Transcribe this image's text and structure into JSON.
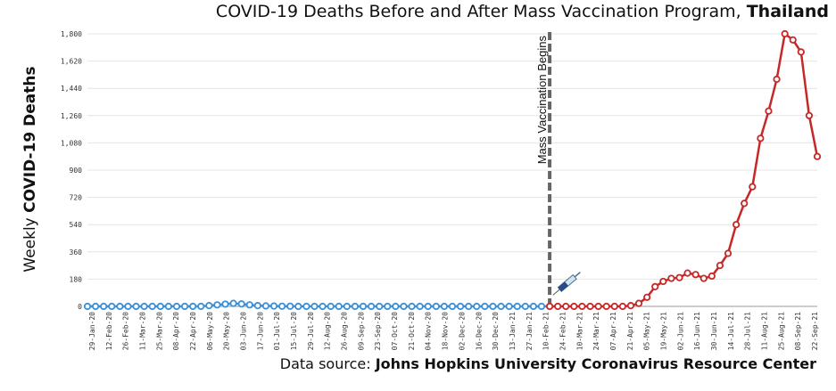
{
  "title": {
    "prefix": "COVID-19 Deaths Before and After Mass Vaccination Program, ",
    "country": "Thailand"
  },
  "ylabel": {
    "prefix": "Weekly ",
    "bold": "COVID-19 Deaths"
  },
  "source": {
    "prefix": "Data source: ",
    "bold": "Johns Hopkins University Coronavirus Resource Center"
  },
  "annotation": "Mass Vaccination Begins",
  "icons": {
    "vaccine": "syringe-icon"
  },
  "colors": {
    "before": "#3a8fd6",
    "after": "#c62828",
    "marker_line": "#666666"
  },
  "chart_data": {
    "type": "line",
    "ylim": [
      0,
      1800
    ],
    "yticks": [
      "0",
      "180",
      "360",
      "540",
      "720",
      "900",
      "1,080",
      "1,260",
      "1,440",
      "1,620",
      "1,800"
    ],
    "xtick_labels": [
      "29-Jan-20",
      "12-Feb-20",
      "26-Feb-20",
      "11-Mar-20",
      "25-Mar-20",
      "08-Apr-20",
      "22-Apr-20",
      "06-May-20",
      "20-May-20",
      "03-Jun-20",
      "17-Jun-20",
      "01-Jul-20",
      "15-Jul-20",
      "29-Jul-20",
      "12-Aug-20",
      "26-Aug-20",
      "09-Sep-20",
      "23-Sep-20",
      "07-Oct-20",
      "21-Oct-20",
      "04-Nov-20",
      "18-Nov-20",
      "02-Dec-20",
      "16-Dec-20",
      "30-Dec-20",
      "13-Jan-21",
      "27-Jan-21",
      "10-Feb-21",
      "24-Feb-21",
      "10-Mar-21",
      "24-Mar-21",
      "07-Apr-21",
      "21-Apr-21",
      "05-May-21",
      "19-May-21",
      "02-Jun-21",
      "16-Jun-21",
      "30-Jun-21",
      "14-Jul-21",
      "28-Jul-21",
      "11-Aug-21",
      "25-Aug-21",
      "08-Sep-21",
      "22-Sep-21"
    ],
    "series": [
      {
        "values": [
          0,
          0,
          0,
          0,
          0,
          0,
          0,
          0,
          0,
          0,
          0,
          0,
          0,
          0,
          0,
          5,
          10,
          15,
          20,
          16,
          10,
          5,
          3,
          2,
          1,
          1,
          0,
          0,
          0,
          0,
          0,
          0,
          0,
          0,
          0,
          0,
          0,
          0,
          0,
          0,
          0,
          0,
          0,
          0,
          0,
          0,
          0,
          0,
          0,
          0,
          0,
          0,
          0,
          0,
          0,
          0,
          0,
          0
        ]
      },
      {
        "values": [
          0,
          0,
          0,
          0,
          0,
          0,
          0,
          0,
          0,
          0,
          5,
          20,
          60,
          130,
          165,
          185,
          190,
          220,
          210,
          185,
          200,
          270,
          350,
          540,
          680,
          790,
          1110,
          1290,
          1500,
          1800,
          1760,
          1680,
          1260,
          990
        ]
      }
    ]
  }
}
